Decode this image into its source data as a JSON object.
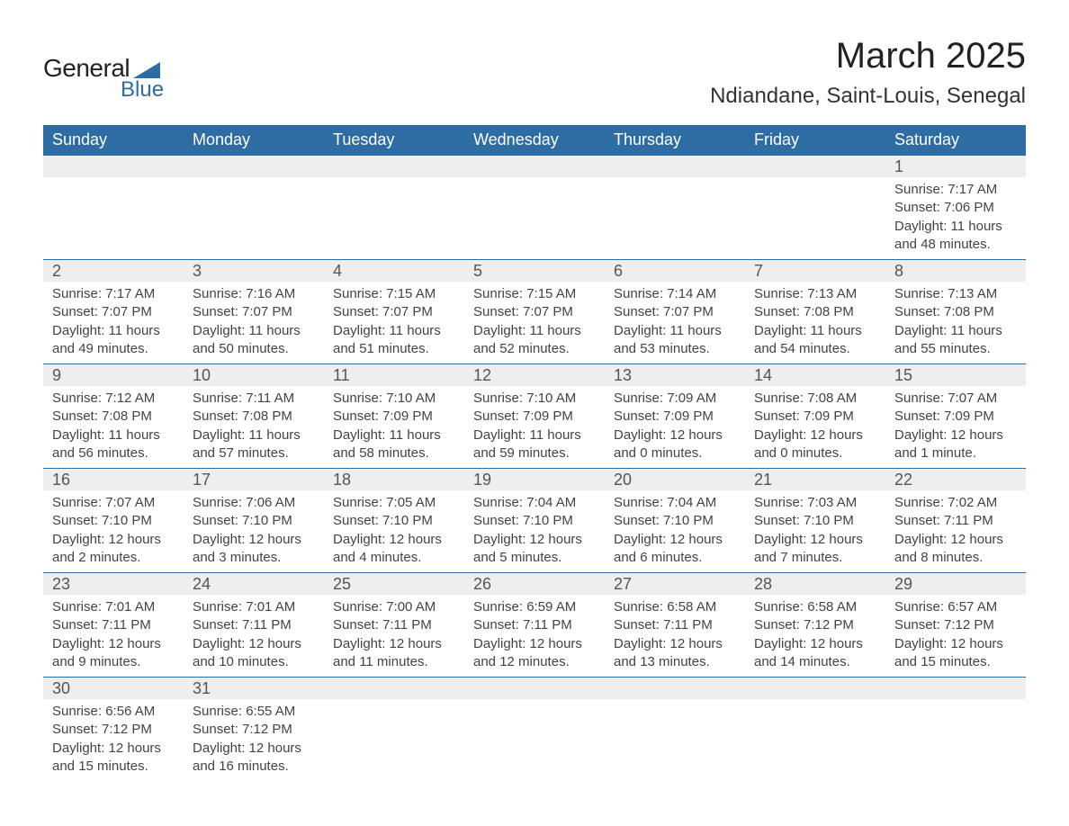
{
  "brand": {
    "main": "General",
    "sub": "Blue",
    "logo_color": "#2e6da4"
  },
  "header": {
    "title": "March 2025",
    "location": "Ndiandane, Saint-Louis, Senegal"
  },
  "colors": {
    "header_bg": "#2e6da4",
    "header_text": "#ffffff",
    "daynum_bg": "#eeeeee",
    "border": "#2e6da4",
    "text": "#333333"
  },
  "calendar": {
    "day_labels": [
      "Sunday",
      "Monday",
      "Tuesday",
      "Wednesday",
      "Thursday",
      "Friday",
      "Saturday"
    ],
    "weeks": [
      [
        null,
        null,
        null,
        null,
        null,
        null,
        {
          "n": "1",
          "sr": "Sunrise: 7:17 AM",
          "ss": "Sunset: 7:06 PM",
          "d1": "Daylight: 11 hours",
          "d2": "and 48 minutes."
        }
      ],
      [
        {
          "n": "2",
          "sr": "Sunrise: 7:17 AM",
          "ss": "Sunset: 7:07 PM",
          "d1": "Daylight: 11 hours",
          "d2": "and 49 minutes."
        },
        {
          "n": "3",
          "sr": "Sunrise: 7:16 AM",
          "ss": "Sunset: 7:07 PM",
          "d1": "Daylight: 11 hours",
          "d2": "and 50 minutes."
        },
        {
          "n": "4",
          "sr": "Sunrise: 7:15 AM",
          "ss": "Sunset: 7:07 PM",
          "d1": "Daylight: 11 hours",
          "d2": "and 51 minutes."
        },
        {
          "n": "5",
          "sr": "Sunrise: 7:15 AM",
          "ss": "Sunset: 7:07 PM",
          "d1": "Daylight: 11 hours",
          "d2": "and 52 minutes."
        },
        {
          "n": "6",
          "sr": "Sunrise: 7:14 AM",
          "ss": "Sunset: 7:07 PM",
          "d1": "Daylight: 11 hours",
          "d2": "and 53 minutes."
        },
        {
          "n": "7",
          "sr": "Sunrise: 7:13 AM",
          "ss": "Sunset: 7:08 PM",
          "d1": "Daylight: 11 hours",
          "d2": "and 54 minutes."
        },
        {
          "n": "8",
          "sr": "Sunrise: 7:13 AM",
          "ss": "Sunset: 7:08 PM",
          "d1": "Daylight: 11 hours",
          "d2": "and 55 minutes."
        }
      ],
      [
        {
          "n": "9",
          "sr": "Sunrise: 7:12 AM",
          "ss": "Sunset: 7:08 PM",
          "d1": "Daylight: 11 hours",
          "d2": "and 56 minutes."
        },
        {
          "n": "10",
          "sr": "Sunrise: 7:11 AM",
          "ss": "Sunset: 7:08 PM",
          "d1": "Daylight: 11 hours",
          "d2": "and 57 minutes."
        },
        {
          "n": "11",
          "sr": "Sunrise: 7:10 AM",
          "ss": "Sunset: 7:09 PM",
          "d1": "Daylight: 11 hours",
          "d2": "and 58 minutes."
        },
        {
          "n": "12",
          "sr": "Sunrise: 7:10 AM",
          "ss": "Sunset: 7:09 PM",
          "d1": "Daylight: 11 hours",
          "d2": "and 59 minutes."
        },
        {
          "n": "13",
          "sr": "Sunrise: 7:09 AM",
          "ss": "Sunset: 7:09 PM",
          "d1": "Daylight: 12 hours",
          "d2": "and 0 minutes."
        },
        {
          "n": "14",
          "sr": "Sunrise: 7:08 AM",
          "ss": "Sunset: 7:09 PM",
          "d1": "Daylight: 12 hours",
          "d2": "and 0 minutes."
        },
        {
          "n": "15",
          "sr": "Sunrise: 7:07 AM",
          "ss": "Sunset: 7:09 PM",
          "d1": "Daylight: 12 hours",
          "d2": "and 1 minute."
        }
      ],
      [
        {
          "n": "16",
          "sr": "Sunrise: 7:07 AM",
          "ss": "Sunset: 7:10 PM",
          "d1": "Daylight: 12 hours",
          "d2": "and 2 minutes."
        },
        {
          "n": "17",
          "sr": "Sunrise: 7:06 AM",
          "ss": "Sunset: 7:10 PM",
          "d1": "Daylight: 12 hours",
          "d2": "and 3 minutes."
        },
        {
          "n": "18",
          "sr": "Sunrise: 7:05 AM",
          "ss": "Sunset: 7:10 PM",
          "d1": "Daylight: 12 hours",
          "d2": "and 4 minutes."
        },
        {
          "n": "19",
          "sr": "Sunrise: 7:04 AM",
          "ss": "Sunset: 7:10 PM",
          "d1": "Daylight: 12 hours",
          "d2": "and 5 minutes."
        },
        {
          "n": "20",
          "sr": "Sunrise: 7:04 AM",
          "ss": "Sunset: 7:10 PM",
          "d1": "Daylight: 12 hours",
          "d2": "and 6 minutes."
        },
        {
          "n": "21",
          "sr": "Sunrise: 7:03 AM",
          "ss": "Sunset: 7:10 PM",
          "d1": "Daylight: 12 hours",
          "d2": "and 7 minutes."
        },
        {
          "n": "22",
          "sr": "Sunrise: 7:02 AM",
          "ss": "Sunset: 7:11 PM",
          "d1": "Daylight: 12 hours",
          "d2": "and 8 minutes."
        }
      ],
      [
        {
          "n": "23",
          "sr": "Sunrise: 7:01 AM",
          "ss": "Sunset: 7:11 PM",
          "d1": "Daylight: 12 hours",
          "d2": "and 9 minutes."
        },
        {
          "n": "24",
          "sr": "Sunrise: 7:01 AM",
          "ss": "Sunset: 7:11 PM",
          "d1": "Daylight: 12 hours",
          "d2": "and 10 minutes."
        },
        {
          "n": "25",
          "sr": "Sunrise: 7:00 AM",
          "ss": "Sunset: 7:11 PM",
          "d1": "Daylight: 12 hours",
          "d2": "and 11 minutes."
        },
        {
          "n": "26",
          "sr": "Sunrise: 6:59 AM",
          "ss": "Sunset: 7:11 PM",
          "d1": "Daylight: 12 hours",
          "d2": "and 12 minutes."
        },
        {
          "n": "27",
          "sr": "Sunrise: 6:58 AM",
          "ss": "Sunset: 7:11 PM",
          "d1": "Daylight: 12 hours",
          "d2": "and 13 minutes."
        },
        {
          "n": "28",
          "sr": "Sunrise: 6:58 AM",
          "ss": "Sunset: 7:12 PM",
          "d1": "Daylight: 12 hours",
          "d2": "and 14 minutes."
        },
        {
          "n": "29",
          "sr": "Sunrise: 6:57 AM",
          "ss": "Sunset: 7:12 PM",
          "d1": "Daylight: 12 hours",
          "d2": "and 15 minutes."
        }
      ],
      [
        {
          "n": "30",
          "sr": "Sunrise: 6:56 AM",
          "ss": "Sunset: 7:12 PM",
          "d1": "Daylight: 12 hours",
          "d2": "and 15 minutes."
        },
        {
          "n": "31",
          "sr": "Sunrise: 6:55 AM",
          "ss": "Sunset: 7:12 PM",
          "d1": "Daylight: 12 hours",
          "d2": "and 16 minutes."
        },
        null,
        null,
        null,
        null,
        null
      ]
    ]
  }
}
